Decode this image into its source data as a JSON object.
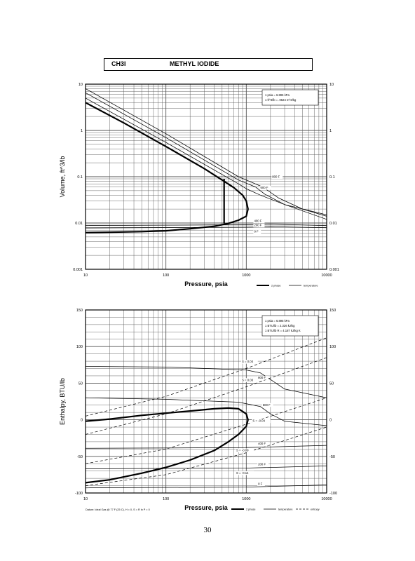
{
  "header": {
    "code": "CH3I",
    "name": "METHYL IODIDE"
  },
  "page_number": "30",
  "chart_data": [
    {
      "type": "line",
      "title": "",
      "xlabel": "Pressure,  psia",
      "ylabel": "Volume, ft^3/lb",
      "xscale": "log",
      "yscale": "log",
      "xlim": [
        10,
        10000
      ],
      "ylim": [
        0.001,
        10
      ],
      "grid": true,
      "x_ticks": [
        "10",
        "100",
        "1000",
        "10000"
      ],
      "y_ticks": [
        "0.001",
        "0.01",
        "0.1",
        "1",
        "10"
      ],
      "y_ticks_right": [
        "0.001",
        "0.01",
        "0.1",
        "1",
        "10"
      ],
      "notes": [
        "1 psia  =  6.895 kPa",
        "1 ft^3/lb  =  .0624 m^3/kg"
      ],
      "legend": {
        "placement": "bottom-right",
        "items": [
          "2 phase",
          "temperature"
        ]
      },
      "series": [
        {
          "name": "",
          "style": "2 phase",
          "x": [
            10,
            30,
            100,
            300,
            500,
            700,
            900,
            1000,
            1050,
            1000,
            800,
            600,
            400,
            200,
            100,
            50,
            20,
            10
          ],
          "y": [
            4.0,
            1.45,
            0.45,
            0.15,
            0.085,
            0.058,
            0.04,
            0.03,
            0.02,
            0.014,
            0.0115,
            0.0098,
            0.0085,
            0.0075,
            0.0068,
            0.0065,
            0.0063,
            0.0062
          ]
        },
        {
          "name": "",
          "style": "2 phase",
          "x": [
            530,
            530
          ],
          "y": [
            0.09,
            0.0098
          ]
        },
        {
          "name": "",
          "style": "temperature",
          "x": [
            10,
            100,
            800,
            1000,
            1500,
            3000,
            10000
          ],
          "y": [
            5.0,
            0.55,
            0.07,
            0.055,
            0.04,
            0.025,
            0.015
          ]
        },
        {
          "name": "",
          "style": "temperature",
          "x": [
            10,
            100,
            800,
            1300,
            1700,
            3000,
            10000
          ],
          "y": [
            6.5,
            0.7,
            0.085,
            0.06,
            0.042,
            0.025,
            0.012
          ]
        },
        {
          "name": "",
          "style": "temperature",
          "x": [
            10,
            100,
            800,
            1600,
            2500,
            5000,
            10000
          ],
          "y": [
            8.0,
            0.85,
            0.1,
            0.06,
            0.035,
            0.02,
            0.014
          ]
        },
        {
          "name": "",
          "style": "temperature",
          "x": [
            10,
            1000,
            2000,
            10000
          ],
          "y": [
            0.0088,
            0.0092,
            0.0095,
            0.0088
          ]
        },
        {
          "name": "",
          "style": "temperature",
          "x": [
            10,
            1000,
            2000,
            10000
          ],
          "y": [
            0.0078,
            0.0081,
            0.0083,
            0.0079
          ]
        }
      ],
      "annotations": [
        {
          "text": "800 F",
          "x": 2100,
          "y": 0.095
        },
        {
          "text": "600 F",
          "x": 1500,
          "y": 0.055
        },
        {
          "text": "400 F",
          "x": 1250,
          "y": 0.0105
        },
        {
          "text": "200 F",
          "x": 1250,
          "y": 0.0085
        },
        {
          "text": "0 F",
          "x": 1250,
          "y": 0.0062
        }
      ]
    },
    {
      "type": "line",
      "title": "",
      "xlabel": "Pressure,  psia",
      "ylabel": "Enthalpy, BTU/lb",
      "xscale": "log",
      "yscale": "linear",
      "xlim": [
        10,
        10000
      ],
      "ylim": [
        -100,
        150
      ],
      "grid": true,
      "x_ticks": [
        "10",
        "100",
        "1000",
        "10000"
      ],
      "y_ticks": [
        "-100",
        "-50",
        "0",
        "50",
        "100",
        "150"
      ],
      "y_ticks_right": [
        "-100",
        "-50",
        "0",
        "50",
        "100",
        "150"
      ],
      "notes": [
        "1 psia  =  6.895 kPa",
        "1 BTU/lb  =  2.326 kJ/kg",
        "1 BTU/lb R  =  4.187 kJ/kg K"
      ],
      "footnote": "Datum: Ideal Gas @ 77 F (25 C),  H = 0,  S = R ln P = 0",
      "legend": {
        "placement": "bottom-right",
        "items": [
          "2 phase",
          "temperature",
          "entropy"
        ]
      },
      "series": [
        {
          "name": "",
          "style": "2 phase",
          "x": [
            10,
            20,
            50,
            100,
            200,
            400,
            600,
            800,
            1000,
            1050,
            1000,
            800,
            600,
            400,
            200,
            100,
            50,
            20,
            10
          ],
          "y": [
            -2,
            1,
            6,
            9,
            12,
            15,
            16,
            15,
            8,
            0,
            -9,
            -20,
            -30,
            -42,
            -55,
            -65,
            -73,
            -82,
            -86
          ]
        },
        {
          "name": "",
          "style": "temperature",
          "x": [
            10,
            100,
            1000,
            1500,
            2000,
            3000,
            10000
          ],
          "y": [
            73,
            72,
            68,
            64,
            55,
            42,
            30
          ]
        },
        {
          "name": "",
          "style": "temperature",
          "x": [
            10,
            100,
            800,
            1500,
            2000,
            3000,
            10000
          ],
          "y": [
            30,
            28,
            24,
            18,
            8,
            -2,
            -8
          ]
        },
        {
          "name": "",
          "style": "temperature",
          "x": [
            10,
            1000,
            10000
          ],
          "y": [
            -39,
            -38,
            -35
          ]
        },
        {
          "name": "",
          "style": "temperature",
          "x": [
            10,
            1000,
            10000
          ],
          "y": [
            -67,
            -66,
            -63
          ]
        },
        {
          "name": "",
          "style": "temperature",
          "x": [
            10,
            1000,
            10000
          ],
          "y": [
            -93,
            -92,
            -89
          ]
        },
        {
          "name": "",
          "style": "entropy",
          "x": [
            10,
            100,
            1000,
            10000
          ],
          "y": [
            5,
            32,
            70,
            112
          ]
        },
        {
          "name": "",
          "style": "entropy",
          "x": [
            10,
            100,
            1000,
            10000
          ],
          "y": [
            -20,
            8,
            45,
            85
          ]
        },
        {
          "name": "",
          "style": "entropy",
          "x": [
            10,
            100,
            1000,
            10000
          ],
          "y": [
            -60,
            -40,
            -6,
            30
          ]
        },
        {
          "name": "",
          "style": "entropy",
          "x": [
            10,
            100,
            1000,
            10000
          ],
          "y": [
            -90,
            -75,
            -45,
            -10
          ]
        }
      ],
      "annotations": [
        {
          "text": "S = 0.04",
          "x": 880,
          "y": 78
        },
        {
          "text": "S = 0.00",
          "x": 880,
          "y": 53
        },
        {
          "text": "800 F",
          "x": 1400,
          "y": 56
        },
        {
          "text": "600 F",
          "x": 1600,
          "y": 19
        },
        {
          "text": "S = -0.04",
          "x": 1200,
          "y": -3
        },
        {
          "text": "400 F",
          "x": 1400,
          "y": -34
        },
        {
          "text": "S = -0.09",
          "x": 750,
          "y": -43
        },
        {
          "text": "200 F",
          "x": 1400,
          "y": -62
        },
        {
          "text": "S = -0.14",
          "x": 750,
          "y": -74
        },
        {
          "text": "0 F",
          "x": 1400,
          "y": -89
        }
      ]
    }
  ]
}
